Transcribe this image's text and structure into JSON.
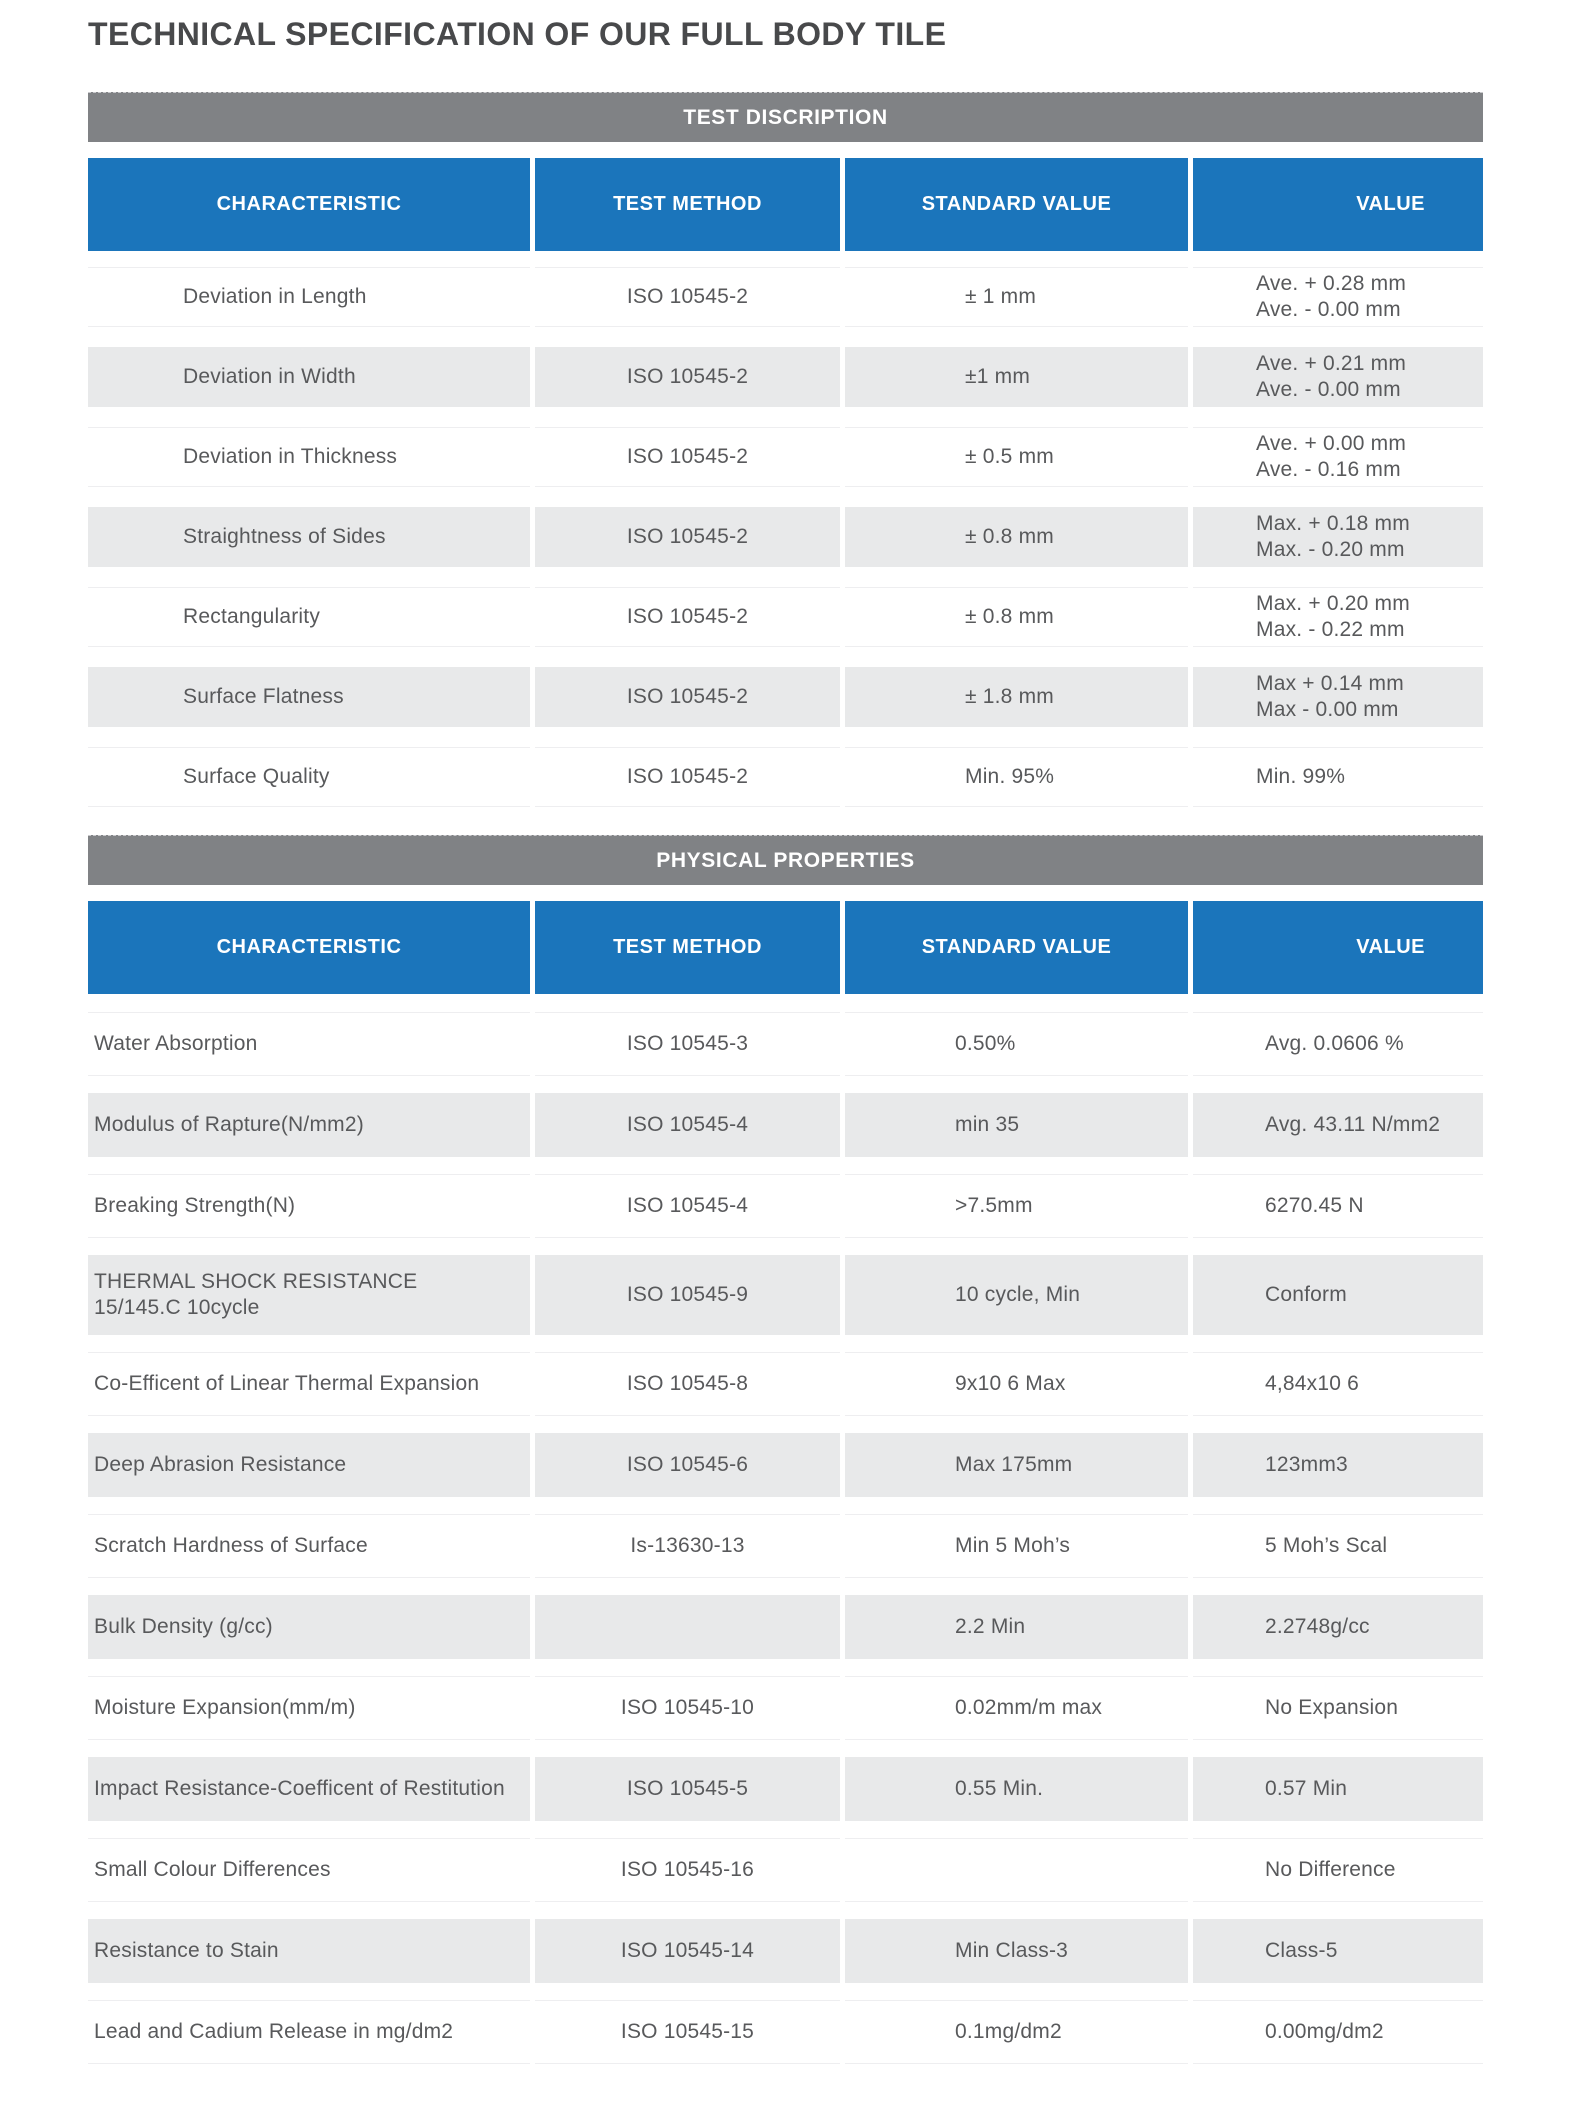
{
  "title": "TECHNICAL SPECIFICATION OF OUR FULL BODY TILE",
  "colors": {
    "header_blue": "#1B75BB",
    "band_gray": "#808285",
    "alt_row_gray": "#E8E9EA",
    "text_gray": "#58595B"
  },
  "sections": [
    {
      "band": "TEST DISCRIPTION",
      "headers": [
        "CHARACTERISTIC",
        "TEST METHOD",
        "STANDARD VALUE",
        "VALUE"
      ],
      "rows": [
        {
          "characteristic": "Deviation in Length",
          "test_method": "ISO 10545-2",
          "standard_value": "± 1 mm",
          "value": "Ave. + 0.28 mm\nAve. - 0.00 mm"
        },
        {
          "characteristic": "Deviation in Width",
          "test_method": "ISO 10545-2",
          "standard_value": "±1 mm",
          "value": "Ave. + 0.21 mm\nAve. - 0.00 mm"
        },
        {
          "characteristic": "Deviation in Thickness",
          "test_method": "ISO 10545-2",
          "standard_value": "± 0.5 mm",
          "value": "Ave. + 0.00 mm\nAve. - 0.16 mm"
        },
        {
          "characteristic": "Straightness of Sides",
          "test_method": "ISO 10545-2",
          "standard_value": "± 0.8 mm",
          "value": "Max. + 0.18 mm\nMax. - 0.20 mm"
        },
        {
          "characteristic": "Rectangularity",
          "test_method": "ISO 10545-2",
          "standard_value": "± 0.8 mm",
          "value": "Max. + 0.20 mm\nMax. - 0.22 mm"
        },
        {
          "characteristic": "Surface Flatness",
          "test_method": "ISO 10545-2",
          "standard_value": "± 1.8 mm",
          "value": "Max + 0.14 mm\nMax - 0.00 mm"
        },
        {
          "characteristic": "Surface Quality",
          "test_method": "ISO 10545-2",
          "standard_value": "Min. 95%",
          "value": "Min. 99%"
        }
      ]
    },
    {
      "band": "PHYSICAL PROPERTIES",
      "headers": [
        "CHARACTERISTIC",
        "TEST METHOD",
        "STANDARD VALUE",
        "VALUE"
      ],
      "rows": [
        {
          "characteristic": "Water Absorption",
          "test_method": "ISO 10545-3",
          "standard_value": "0.50%",
          "value": "Avg. 0.0606 %"
        },
        {
          "characteristic": "Modulus of Rapture(N/mm2)",
          "test_method": "ISO 10545-4",
          "standard_value": "min 35",
          "value": "Avg. 43.11 N/mm2"
        },
        {
          "characteristic": "Breaking Strength(N)",
          "test_method": "ISO 10545-4",
          "standard_value": ">7.5mm",
          "value": "6270.45 N"
        },
        {
          "characteristic": "THERMAL SHOCK RESISTANCE\n15/145.C 10cycle",
          "test_method": "ISO 10545-9",
          "standard_value": "10 cycle, Min",
          "value": "Conform",
          "tall": true
        },
        {
          "characteristic": "Co-Efficent of Linear Thermal Expansion",
          "test_method": "ISO 10545-8",
          "standard_value": "9x10 6 Max",
          "value": "4,84x10 6"
        },
        {
          "characteristic": "Deep Abrasion Resistance",
          "test_method": "ISO 10545-6",
          "standard_value": "Max 175mm",
          "value": "123mm3"
        },
        {
          "characteristic": "Scratch Hardness of Surface",
          "test_method": "Is-13630-13",
          "standard_value": "Min 5 Moh’s",
          "value": "5 Moh’s Scal"
        },
        {
          "characteristic": "Bulk Density (g/cc)",
          "test_method": "",
          "standard_value": "2.2 Min",
          "value": "2.2748g/cc"
        },
        {
          "characteristic": "Moisture Expansion(mm/m)",
          "test_method": "ISO 10545-10",
          "standard_value": "0.02mm/m max",
          "value": "No Expansion"
        },
        {
          "characteristic": "Impact Resistance-Coefficent of Restitution",
          "test_method": "ISO 10545-5",
          "standard_value": "0.55 Min.",
          "value": "0.57 Min"
        },
        {
          "characteristic": "Small Colour Differences",
          "test_method": "ISO 10545-16",
          "standard_value": "",
          "value": "No Difference"
        },
        {
          "characteristic": "Resistance to Stain",
          "test_method": "ISO 10545-14",
          "standard_value": "Min Class-3",
          "value": "Class-5"
        },
        {
          "characteristic": "Lead and Cadium Release in mg/dm2",
          "test_method": "ISO 10545-15",
          "standard_value": "0.1mg/dm2",
          "value": "0.00mg/dm2"
        }
      ]
    }
  ]
}
